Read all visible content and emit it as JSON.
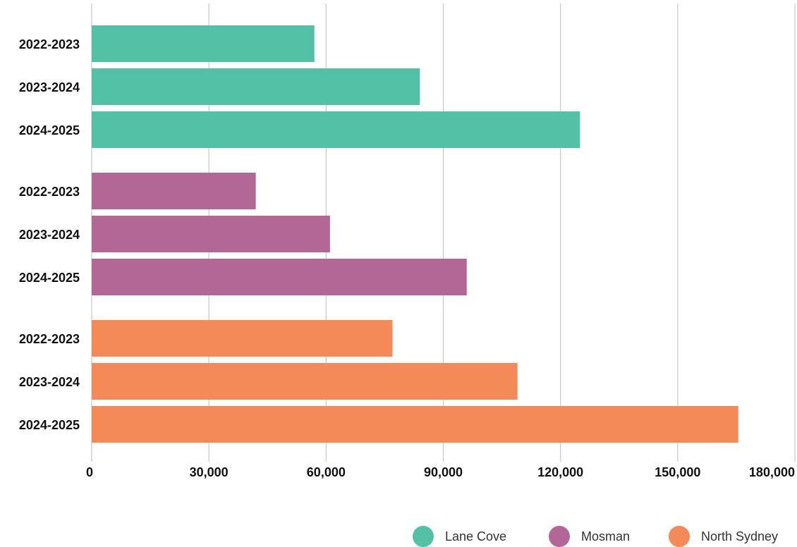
{
  "chart_data": {
    "type": "bar",
    "orientation": "horizontal",
    "title": "",
    "xlabel": "",
    "ylabel": "",
    "xlim": [
      0,
      180000
    ],
    "x_ticks": [
      0,
      30000,
      60000,
      90000,
      120000,
      150000,
      180000
    ],
    "x_tick_labels": [
      "0",
      "30,000",
      "60,000",
      "90,000",
      "120,000",
      "150,000",
      "180,000"
    ],
    "grid": "vertical",
    "legend_position": "bottom-right",
    "groups": [
      {
        "name": "Lane Cove",
        "color": "#53c1a6",
        "categories": [
          "2022-2023",
          "2023-2024",
          "2024-2025"
        ],
        "values": [
          57000,
          84000,
          125000
        ]
      },
      {
        "name": "Mosman",
        "color": "#b36797",
        "categories": [
          "2022-2023",
          "2023-2024",
          "2024-2025"
        ],
        "values": [
          42000,
          61000,
          96000
        ]
      },
      {
        "name": "North Sydney",
        "color": "#f48a58",
        "categories": [
          "2022-2023",
          "2023-2024",
          "2024-2025"
        ],
        "values": [
          77000,
          109000,
          165500
        ]
      }
    ]
  }
}
